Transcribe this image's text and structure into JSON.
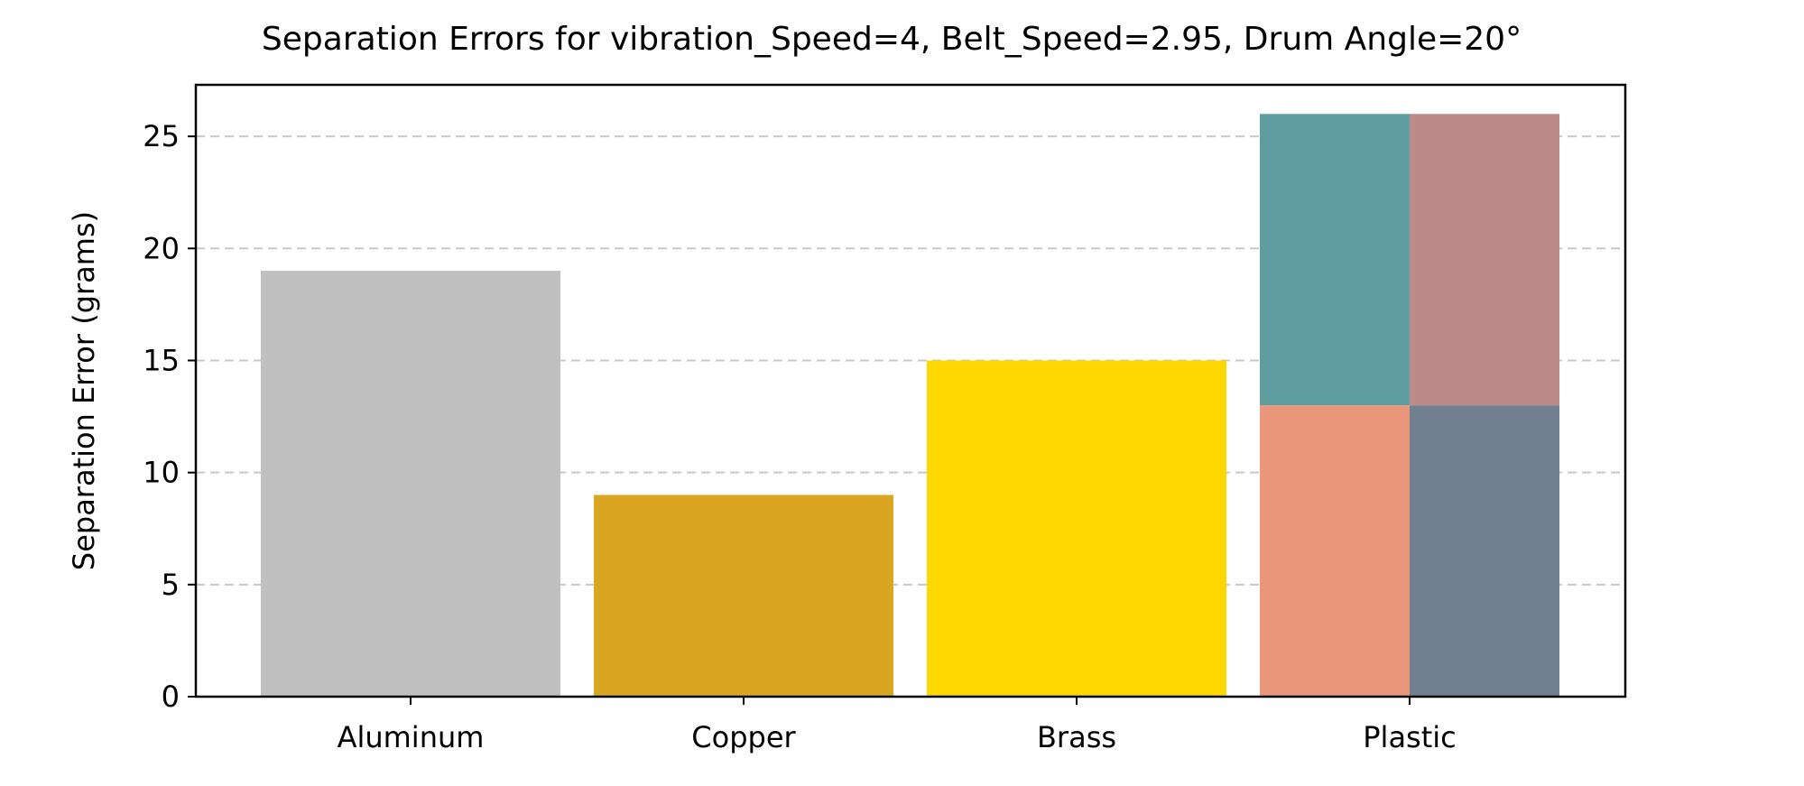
{
  "chart_data": {
    "type": "bar",
    "title": "Separation Errors for vibration_Speed=4, Belt_Speed=2.95, Drum Angle=20°",
    "xlabel": "",
    "ylabel": "Separation Error (grams)",
    "ylim": [
      0,
      27.3
    ],
    "yticks": [
      0,
      5,
      10,
      15,
      20,
      25
    ],
    "grid": "horizontal dashed",
    "legend": "none",
    "categories": [
      "Aluminum",
      "Copper",
      "Brass",
      "Plastic"
    ],
    "values": [
      19,
      9,
      15,
      26
    ],
    "bar_colors": [
      "#c0c0c0",
      "#daa520",
      "#ffd700",
      null
    ],
    "plastic_quadrants": {
      "top_left": {
        "color": "#5f9ea0",
        "from": 13,
        "to": 26
      },
      "top_right": {
        "color": "#bc8a89",
        "from": 13,
        "to": 26
      },
      "bottom_left": {
        "color": "#e9967a",
        "from": 0,
        "to": 13
      },
      "bottom_right": {
        "color": "#708090",
        "from": 0,
        "to": 13
      }
    }
  }
}
